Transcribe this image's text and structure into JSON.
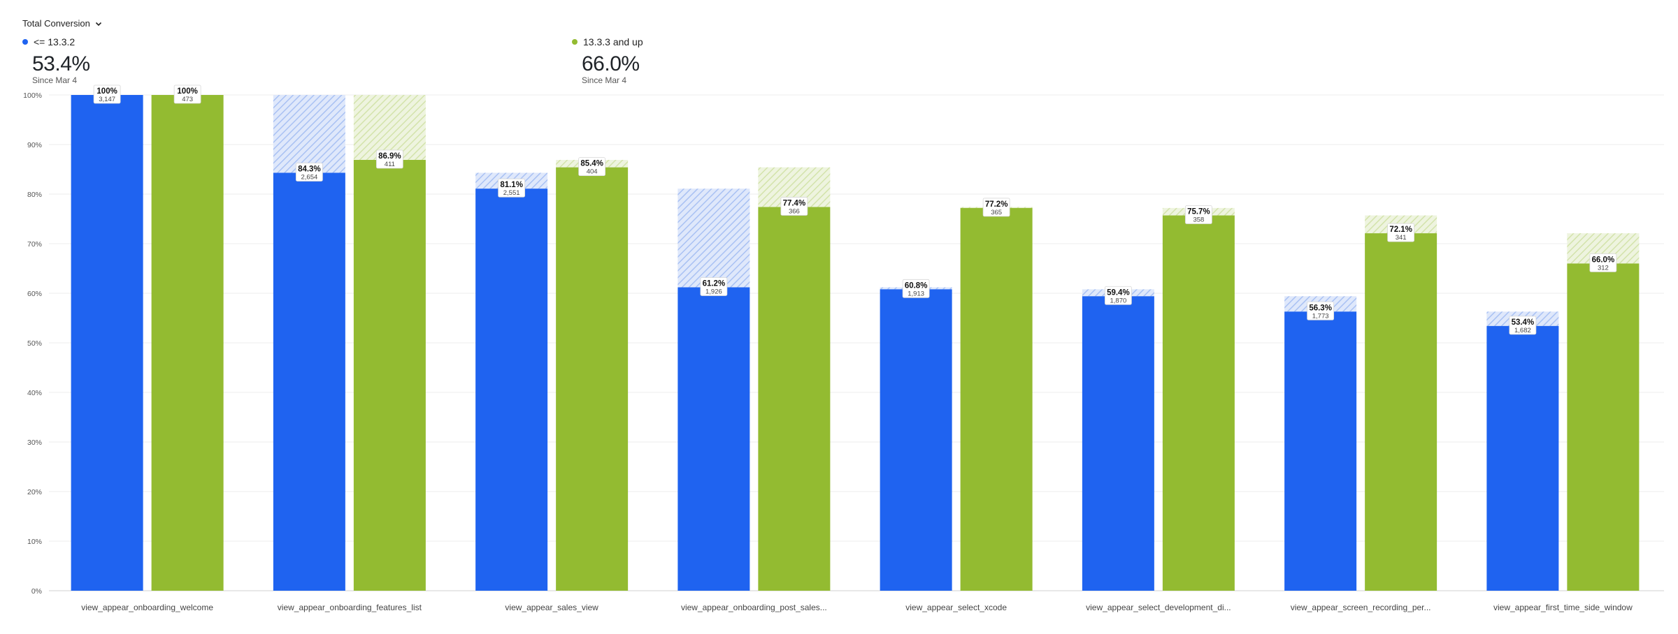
{
  "metric_selector": {
    "label": "Total Conversion",
    "icon": "chevron-down-icon"
  },
  "legend": [
    {
      "name": "<= 13.3.2",
      "value": "53.4%",
      "since": "Since Mar 4",
      "color": "#1f63f0"
    },
    {
      "name": "13.3.3 and up",
      "value": "66.0%",
      "since": "Since Mar 4",
      "color": "#93bb31"
    }
  ],
  "chart_data": {
    "type": "bar",
    "title": "",
    "xlabel": "",
    "ylabel": "",
    "ylim": [
      0,
      100
    ],
    "y_ticks": [
      "0%",
      "10%",
      "20%",
      "30%",
      "40%",
      "50%",
      "60%",
      "70%",
      "80%",
      "90%",
      "100%"
    ],
    "grid": true,
    "categories": [
      "view_appear_onboarding_welcome",
      "view_appear_onboarding_features_list",
      "view_appear_sales_view",
      "view_appear_onboarding_post_sales...",
      "view_appear_select_xcode",
      "view_appear_select_development_di...",
      "view_appear_screen_recording_per...",
      "view_appear_first_time_side_window"
    ],
    "series": [
      {
        "name": "<= 13.3.2",
        "color": "#1f63f0",
        "hatch_color": "#b8ccf5",
        "values": [
          100,
          84.3,
          81.1,
          61.2,
          60.8,
          59.4,
          56.3,
          53.4
        ],
        "previous_values": [
          100,
          100,
          84.3,
          81.1,
          61.2,
          60.8,
          59.4,
          56.3
        ],
        "labels": [
          "100%",
          "84.3%",
          "81.1%",
          "61.2%",
          "60.8%",
          "59.4%",
          "56.3%",
          "53.4%"
        ],
        "counts": [
          "3,147",
          "2,654",
          "2,551",
          "1,926",
          "1,913",
          "1,870",
          "1,773",
          "1,682"
        ]
      },
      {
        "name": "13.3.3 and up",
        "color": "#93bb31",
        "hatch_color": "#d8e7b6",
        "values": [
          100,
          86.9,
          85.4,
          77.4,
          77.2,
          75.7,
          72.1,
          66.0
        ],
        "previous_values": [
          100,
          100,
          86.9,
          85.4,
          77.4,
          77.2,
          75.7,
          72.1
        ],
        "labels": [
          "100%",
          "86.9%",
          "85.4%",
          "77.4%",
          "77.2%",
          "75.7%",
          "72.1%",
          "66.0%"
        ],
        "counts": [
          "473",
          "411",
          "404",
          "366",
          "365",
          "358",
          "341",
          "312"
        ]
      }
    ]
  }
}
